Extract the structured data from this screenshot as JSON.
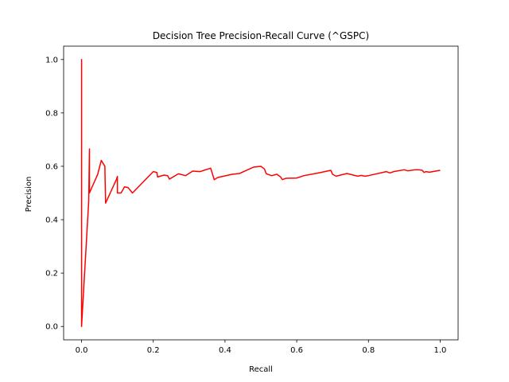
{
  "chart_data": {
    "type": "line",
    "title": "Decision Tree Precision-Recall Curve (^GSPC)",
    "xlabel": "Recall",
    "ylabel": "Precision",
    "xlim": [
      -0.05,
      1.05
    ],
    "ylim": [
      -0.05,
      1.05
    ],
    "xticks": [
      0.0,
      0.2,
      0.4,
      0.6,
      0.8,
      1.0
    ],
    "yticks": [
      0.0,
      0.2,
      0.4,
      0.6,
      0.8,
      1.0
    ],
    "xtick_labels": [
      "0.0",
      "0.2",
      "0.4",
      "0.6",
      "0.8",
      "1.0"
    ],
    "ytick_labels": [
      "0.0",
      "0.2",
      "0.4",
      "0.6",
      "0.8",
      "1.0"
    ],
    "grid": false,
    "series": [
      {
        "color": "#ff0000",
        "x": [
          0.0,
          0.0,
          0.0,
          0.02,
          0.022,
          0.022,
          0.045,
          0.055,
          0.065,
          0.067,
          0.067,
          0.097,
          0.1,
          0.1,
          0.11,
          0.12,
          0.13,
          0.142,
          0.2,
          0.21,
          0.212,
          0.23,
          0.24,
          0.245,
          0.245,
          0.27,
          0.29,
          0.31,
          0.33,
          0.36,
          0.37,
          0.38,
          0.42,
          0.44,
          0.48,
          0.5,
          0.51,
          0.515,
          0.53,
          0.545,
          0.555,
          0.56,
          0.57,
          0.6,
          0.62,
          0.66,
          0.695,
          0.7,
          0.71,
          0.74,
          0.77,
          0.78,
          0.79,
          0.8,
          0.85,
          0.86,
          0.87,
          0.9,
          0.91,
          0.93,
          0.94,
          0.95,
          0.955,
          0.96,
          0.97,
          1.0
        ],
        "y": [
          0.0,
          1.0,
          0.0,
          0.47,
          0.665,
          0.5,
          0.57,
          0.622,
          0.6,
          0.462,
          0.462,
          0.55,
          0.562,
          0.5,
          0.5,
          0.523,
          0.52,
          0.5,
          0.58,
          0.577,
          0.56,
          0.567,
          0.565,
          0.552,
          0.552,
          0.572,
          0.565,
          0.582,
          0.58,
          0.593,
          0.55,
          0.558,
          0.57,
          0.573,
          0.597,
          0.6,
          0.59,
          0.572,
          0.565,
          0.57,
          0.56,
          0.55,
          0.555,
          0.556,
          0.565,
          0.575,
          0.585,
          0.57,
          0.563,
          0.573,
          0.563,
          0.566,
          0.563,
          0.565,
          0.58,
          0.575,
          0.58,
          0.587,
          0.583,
          0.587,
          0.587,
          0.585,
          0.577,
          0.58,
          0.578,
          0.585
        ]
      }
    ]
  }
}
